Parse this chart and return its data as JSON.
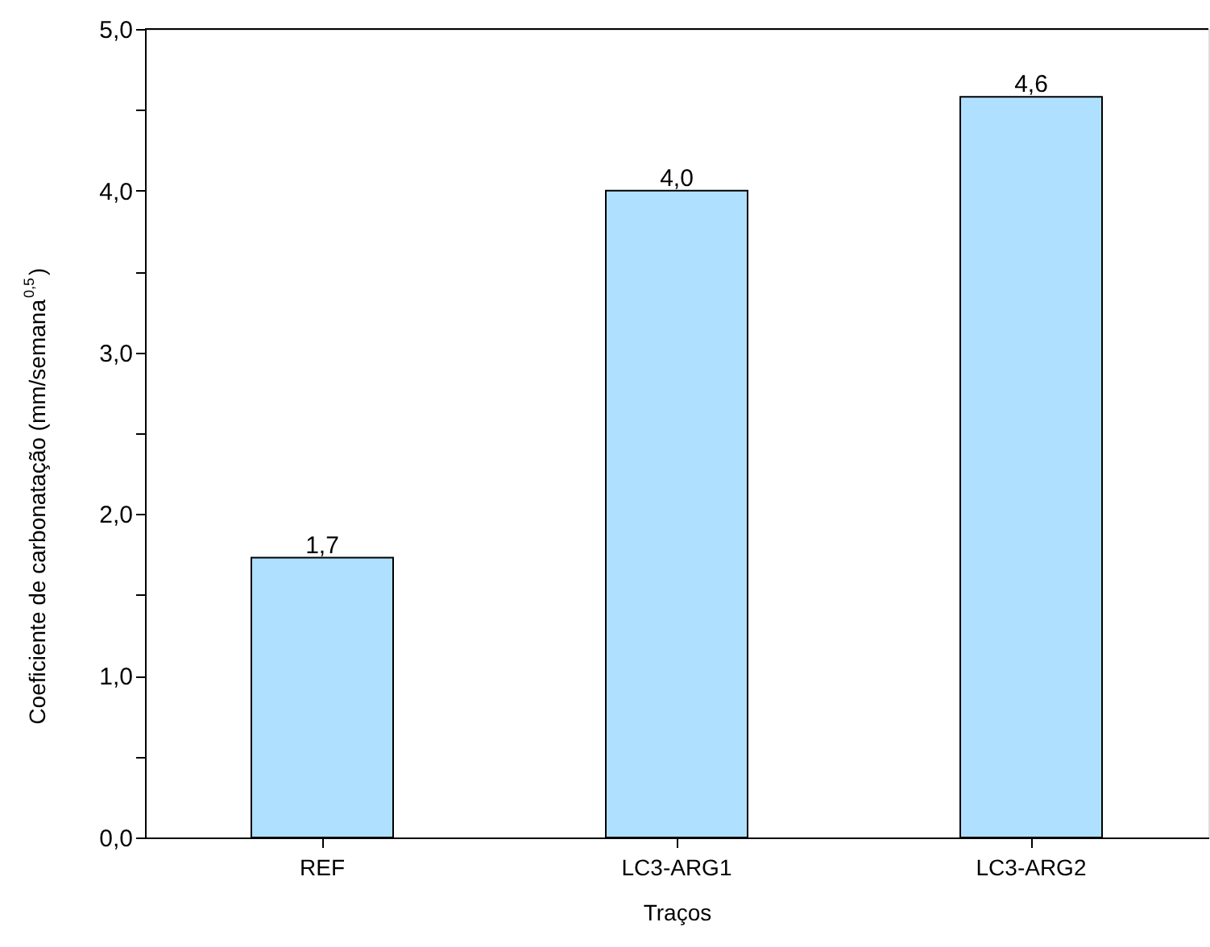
{
  "chart_data": {
    "type": "bar",
    "xlabel": "Traços",
    "ylabel": "Coeficiente de carbonatação (mm/semana$^{0,5}$)",
    "categories": [
      "REF",
      "LC3-ARG1",
      "LC3-ARG2"
    ],
    "values": [
      1.73,
      4.0,
      4.58
    ],
    "value_labels": [
      "1,7",
      "4,0",
      "4,6"
    ],
    "color": "#b0e0ff",
    "ylim": [
      0,
      5
    ],
    "yticks": [
      {
        "value": 0,
        "label": "0,0"
      },
      {
        "value": 0.5,
        "label": null
      },
      {
        "value": 1,
        "label": "1,0"
      },
      {
        "value": 1.5,
        "label": null
      },
      {
        "value": 2,
        "label": "2,0"
      },
      {
        "value": 2.5,
        "label": null
      },
      {
        "value": 3,
        "label": "3,0"
      },
      {
        "value": 3.5,
        "label": null
      },
      {
        "value": 4,
        "label": "4,0"
      },
      {
        "value": 4.5,
        "label": null
      },
      {
        "value": 5,
        "label": "5,0"
      }
    ],
    "grid": false
  }
}
